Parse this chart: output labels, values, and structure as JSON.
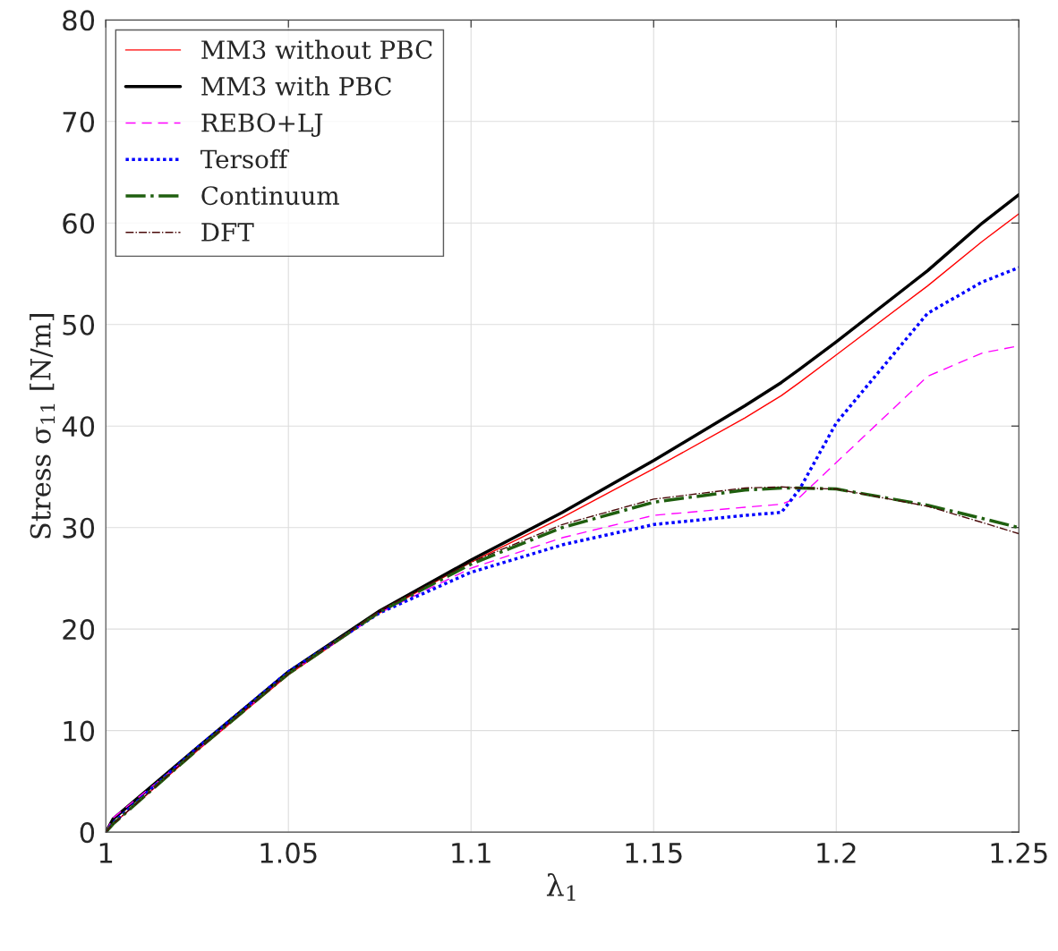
{
  "chart_data": {
    "type": "line",
    "xlabel": "λ$_{1}$",
    "ylabel": "Stress σ$_{11}$ [N/m]",
    "xlim": [
      1,
      1.25
    ],
    "xticks": [
      1,
      1.05,
      1.1,
      1.15,
      1.2,
      1.25
    ],
    "ylim": [
      0,
      80
    ],
    "yticks": [
      0,
      10,
      20,
      30,
      40,
      50,
      60,
      70,
      80
    ],
    "grid": true,
    "legend": "top left",
    "marker": "none",
    "x": [
      1,
      1.002,
      1.025,
      1.05,
      1.075,
      1.1,
      1.125,
      1.15,
      1.175,
      1.185,
      1.19,
      1.2,
      1.225,
      1.24,
      1.25
    ],
    "series": [
      {
        "name": "MM3 without PBC",
        "color": "#ff0000",
        "line_style": "solid",
        "values": [
          0,
          0.8,
          8.0,
          15.5,
          21.6,
          26.6,
          31.0,
          35.8,
          40.8,
          43.0,
          44.3,
          47.0,
          53.8,
          58.2,
          60.9
        ]
      },
      {
        "name": "MM3 with PBC",
        "color": "#000000",
        "line_style": "solid",
        "values": [
          0,
          1.3,
          8.3,
          15.8,
          21.8,
          26.8,
          31.5,
          36.6,
          42.0,
          44.3,
          45.6,
          48.3,
          55.3,
          60.0,
          62.8
        ]
      },
      {
        "name": "REBO+LJ",
        "color": "#ff00ff",
        "line_style": "dashed",
        "values": [
          0,
          1.4,
          8.1,
          15.6,
          21.6,
          26.0,
          29.0,
          31.2,
          32.0,
          32.3,
          33.0,
          36.4,
          44.9,
          47.2,
          47.9
        ]
      },
      {
        "name": "Tersoff",
        "color": "#0000ff",
        "line_style": "dotted",
        "values": [
          0,
          0.9,
          8.3,
          15.8,
          21.6,
          25.6,
          28.3,
          30.3,
          31.2,
          31.5,
          33.8,
          40.3,
          51.1,
          54.2,
          55.6
        ]
      },
      {
        "name": "Continuum",
        "color": "#1f5f0f",
        "line_style": "dashdot",
        "values": [
          0,
          0.8,
          8.1,
          15.6,
          21.7,
          26.4,
          30.0,
          32.5,
          33.7,
          33.9,
          33.9,
          33.8,
          32.2,
          30.9,
          30.0
        ]
      },
      {
        "name": "DFT",
        "color": "#4a0a0a",
        "line_style": "dashdot",
        "values": [
          0,
          0.8,
          8.1,
          15.6,
          21.8,
          26.6,
          30.3,
          32.8,
          33.9,
          34.0,
          33.9,
          33.8,
          32.1,
          30.5,
          29.4
        ]
      }
    ]
  }
}
